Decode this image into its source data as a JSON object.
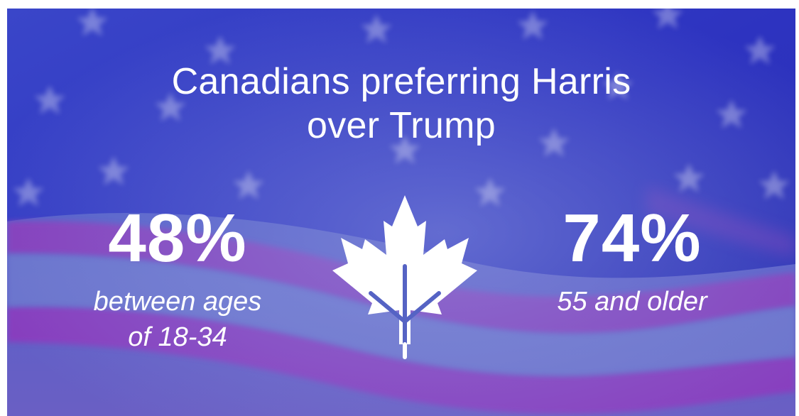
{
  "headline": {
    "line1": "Canadians preferring Harris",
    "line2": "over Trump"
  },
  "stats": [
    {
      "value": "48%",
      "caption_line1": "between ages",
      "caption_line2": "of 18-34"
    },
    {
      "value": "74%",
      "caption_line1": "55 and older"
    }
  ],
  "background": {
    "image": "us-flag",
    "colors": {
      "blue": "#2a34c8",
      "stripe": "#8c3ab5",
      "light": "#7a86d6"
    }
  },
  "icons": {
    "center": "maple-leaf-icon"
  }
}
